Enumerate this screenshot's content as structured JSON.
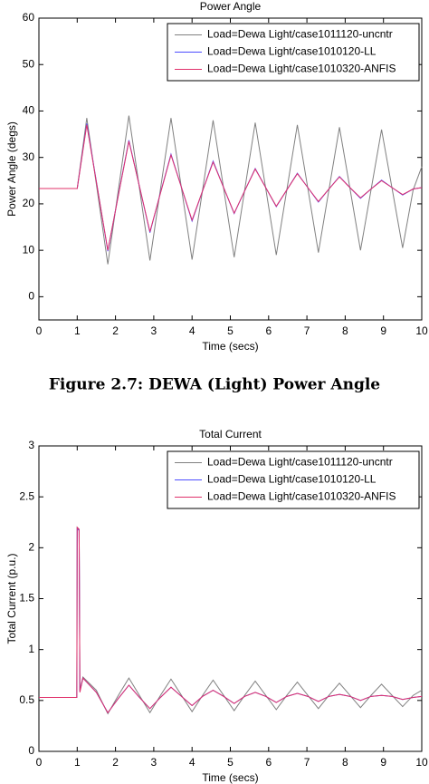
{
  "chart_data": [
    {
      "type": "line",
      "title": "Power Angle",
      "xlabel": "Time (secs)",
      "ylabel": "Power Angle    (degs)",
      "xlim": [
        0,
        10
      ],
      "ylim": [
        -5,
        60
      ],
      "xticks": [
        0,
        1,
        2,
        3,
        4,
        5,
        6,
        7,
        8,
        9,
        10
      ],
      "yticks": [
        0,
        10,
        20,
        30,
        40,
        50,
        60
      ],
      "legend": "upper right",
      "x": [
        0,
        1.0,
        1.25,
        1.525,
        1.8,
        2.075,
        2.35,
        2.625,
        2.9,
        3.175,
        3.45,
        3.725,
        4.0,
        4.275,
        4.55,
        4.825,
        5.1,
        5.375,
        5.65,
        5.925,
        6.2,
        6.475,
        6.75,
        7.025,
        7.3,
        7.575,
        7.85,
        8.125,
        8.4,
        8.675,
        8.95,
        9.225,
        9.5,
        9.775,
        10
      ],
      "series": [
        {
          "name": "Load=Dewa Light/case1011120-uncntr",
          "color": "#808080",
          "values": [
            23.3,
            23.3,
            38.5,
            22.8,
            7,
            23,
            39,
            23.4,
            7.8,
            23.2,
            38.5,
            23.3,
            8,
            23,
            38,
            23.3,
            8.5,
            23,
            37.5,
            23.3,
            9,
            23,
            37,
            23.3,
            9.5,
            23,
            36.5,
            23.3,
            10,
            23,
            36,
            23.3,
            10.5,
            23,
            28
          ]
        },
        {
          "name": "Load=Dewa Light/case1010120-LL",
          "color": "#4d4dff",
          "values": [
            23.3,
            23.3,
            37.3,
            23.6,
            9.8,
            21.9,
            33.7,
            23.8,
            13.8,
            22.4,
            30.7,
            23.5,
            16.3,
            22.8,
            29.2,
            23.5,
            17.9,
            22.8,
            27.6,
            23.5,
            19.4,
            23,
            26.6,
            23.5,
            20.4,
            23.2,
            25.9,
            23.5,
            21.2,
            23.2,
            25.1,
            23.5,
            21.9,
            23.2,
            23.5
          ]
        },
        {
          "name": "Load=Dewa Light/case1010320-ANFIS",
          "color": "#e0306a",
          "values": [
            23.3,
            23.3,
            37,
            23.5,
            10,
            21.8,
            33.5,
            23.8,
            14,
            22.3,
            30.5,
            23.5,
            16.5,
            22.8,
            29,
            23.5,
            18,
            22.8,
            27.5,
            23.5,
            19.5,
            23,
            26.5,
            23.5,
            20.5,
            23.2,
            25.8,
            23.5,
            21.3,
            23.2,
            25,
            23.5,
            22,
            23.2,
            23.5
          ]
        }
      ]
    },
    {
      "type": "line",
      "title": "Total Current",
      "xlabel": "Time (secs)",
      "ylabel": "Total Current  (p.u.)",
      "xlim": [
        0,
        10
      ],
      "ylim": [
        0,
        3
      ],
      "xticks": [
        0,
        1,
        2,
        3,
        4,
        5,
        6,
        7,
        8,
        9,
        10
      ],
      "yticks": [
        0,
        0.5,
        1,
        1.5,
        2,
        2.5,
        3
      ],
      "legend": "upper right",
      "x": [
        0,
        0.99,
        1.0,
        1.05,
        1.07,
        1.15,
        1.5,
        1.8,
        2.075,
        2.35,
        2.625,
        2.9,
        3.175,
        3.45,
        3.725,
        4.0,
        4.275,
        4.55,
        4.825,
        5.1,
        5.375,
        5.65,
        5.925,
        6.2,
        6.475,
        6.75,
        7.025,
        7.3,
        7.575,
        7.85,
        8.125,
        8.4,
        8.675,
        8.95,
        9.225,
        9.5,
        9.775,
        10
      ],
      "series": [
        {
          "name": "Load=Dewa Light/case1011120-uncntr",
          "color": "#808080",
          "values": [
            0.53,
            0.53,
            2.2,
            2.18,
            0.6,
            0.73,
            0.6,
            0.37,
            0.55,
            0.72,
            0.55,
            0.38,
            0.55,
            0.71,
            0.55,
            0.39,
            0.55,
            0.7,
            0.55,
            0.4,
            0.55,
            0.69,
            0.55,
            0.41,
            0.55,
            0.68,
            0.55,
            0.42,
            0.55,
            0.67,
            0.55,
            0.43,
            0.55,
            0.66,
            0.55,
            0.44,
            0.55,
            0.6
          ]
        },
        {
          "name": "Load=Dewa Light/case1010120-LL",
          "color": "#4d4dff",
          "values": [
            0.53,
            0.53,
            2.19,
            2.17,
            0.59,
            0.72,
            0.58,
            0.38,
            0.52,
            0.65,
            0.53,
            0.42,
            0.53,
            0.63,
            0.54,
            0.45,
            0.54,
            0.6,
            0.54,
            0.47,
            0.54,
            0.58,
            0.54,
            0.48,
            0.54,
            0.57,
            0.54,
            0.49,
            0.54,
            0.56,
            0.54,
            0.5,
            0.54,
            0.55,
            0.54,
            0.51,
            0.53,
            0.54
          ]
        },
        {
          "name": "Load=Dewa Light/case1010320-ANFIS",
          "color": "#e0306a",
          "values": [
            0.53,
            0.53,
            2.2,
            2.18,
            0.58,
            0.72,
            0.58,
            0.38,
            0.52,
            0.65,
            0.53,
            0.42,
            0.53,
            0.63,
            0.54,
            0.45,
            0.54,
            0.6,
            0.54,
            0.47,
            0.54,
            0.58,
            0.54,
            0.48,
            0.54,
            0.57,
            0.54,
            0.49,
            0.54,
            0.56,
            0.54,
            0.5,
            0.54,
            0.55,
            0.54,
            0.51,
            0.53,
            0.54
          ]
        }
      ]
    }
  ],
  "caption": "Figure 2.7: DEWA (Light) Power Angle"
}
